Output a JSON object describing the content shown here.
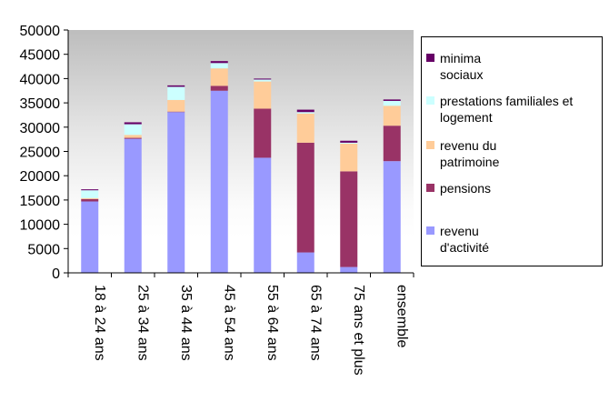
{
  "chart_data": {
    "type": "bar",
    "stacked": true,
    "categories": [
      "18 à 24 ans",
      "25 à 34 ans",
      "35 à 44 ans",
      "45 à 54 ans",
      "55 à 64 ans",
      "65 à 74 ans",
      "75 ans et plus",
      "ensemble"
    ],
    "ylim": [
      0,
      50000
    ],
    "yticks": [
      0,
      5000,
      10000,
      15000,
      20000,
      25000,
      30000,
      35000,
      40000,
      45000,
      50000
    ],
    "grid": false,
    "legend_position": "right",
    "series": [
      {
        "name": "revenu d'activité",
        "color": "#9999ff",
        "values": [
          14700,
          27600,
          33100,
          37500,
          23700,
          4200,
          1200,
          23000
        ]
      },
      {
        "name": "pensions",
        "color": "#993366",
        "values": [
          500,
          200,
          100,
          1000,
          10100,
          22600,
          19700,
          7300
        ]
      },
      {
        "name": "revenu du patrimoine",
        "color": "#ffcc99",
        "values": [
          200,
          600,
          2400,
          3600,
          5600,
          6000,
          5700,
          4100
        ]
      },
      {
        "name": "prestations familiales et logement",
        "color": "#ccffff",
        "values": [
          1600,
          2200,
          2700,
          1100,
          400,
          300,
          200,
          1000
        ]
      },
      {
        "name": "minima sociaux",
        "color": "#660066",
        "values": [
          200,
          400,
          300,
          400,
          200,
          500,
          400,
          300
        ]
      }
    ]
  },
  "legend": {
    "items": [
      {
        "label_lines": [
          "minima",
          "sociaux"
        ],
        "color": "#660066"
      },
      {
        "label_lines": [
          "prestations familiales et",
          "logement"
        ],
        "color": "#ccffff"
      },
      {
        "label_lines": [
          "revenu du",
          "patrimoine"
        ],
        "color": "#ffcc99"
      },
      {
        "label_lines": [
          "pensions"
        ],
        "color": "#993366"
      },
      {
        "label_lines": [
          "revenu",
          "d'activité"
        ],
        "color": "#9999ff"
      }
    ]
  }
}
